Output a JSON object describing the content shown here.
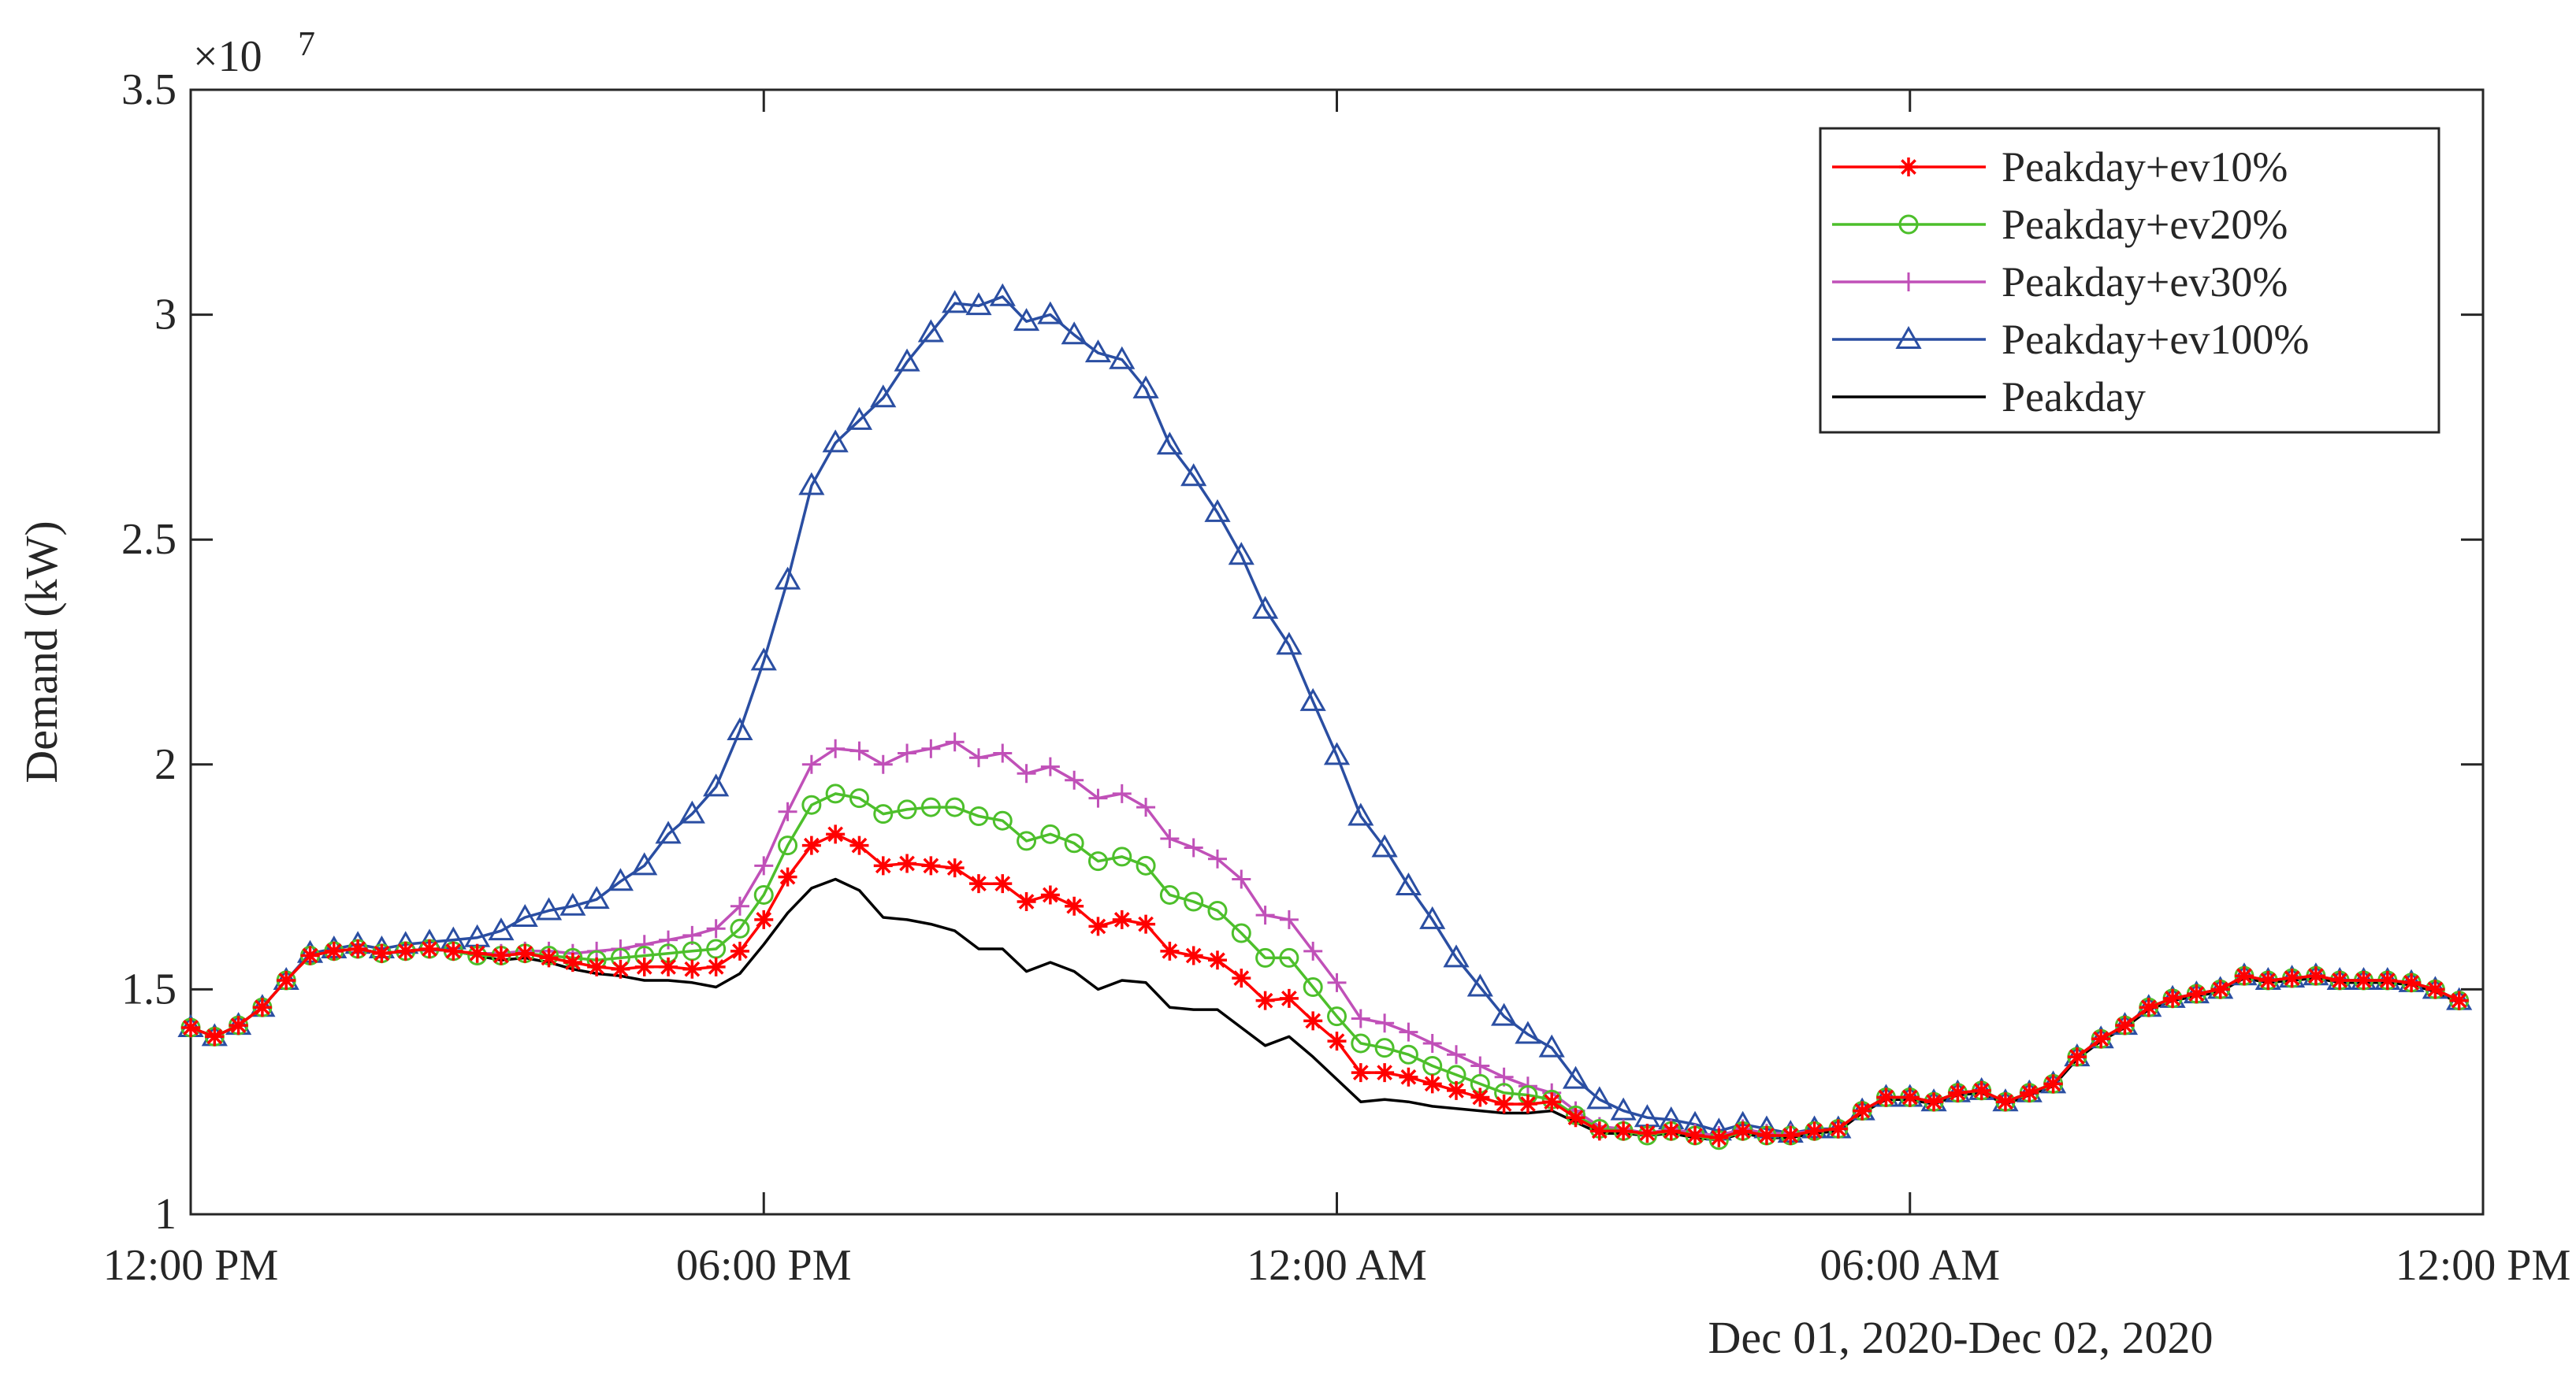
{
  "chart_data": {
    "type": "line",
    "title": "",
    "xlabel": "Dec 01, 2020-Dec 02, 2020",
    "ylabel": "Demand (kW)",
    "y_exponent_label": "×10",
    "y_exponent_power": "7",
    "ylim": [
      1.0,
      3.5
    ],
    "yticks": [
      1,
      1.5,
      2,
      2.5,
      3,
      3.5
    ],
    "ytick_labels": [
      "1",
      "1.5",
      "2",
      "2.5",
      "3",
      "3.5"
    ],
    "xlim_hours": [
      0,
      24
    ],
    "xticks_hours": [
      0,
      6,
      12,
      18,
      24
    ],
    "xtick_labels": [
      "12:00 PM",
      "06:00 PM",
      "12:00 AM",
      "06:00 AM",
      "12:00 PM"
    ],
    "legend_position": "top-right",
    "x_step_hours": 0.25,
    "x_note": "values are sampled every 15 minutes starting at 12:00 PM on Dec 01, 2020 (x in hours from start)",
    "series": [
      {
        "name": "Peakday+ev10%",
        "color": "#ff0000",
        "marker": "star",
        "values": [
          1.415,
          1.395,
          1.42,
          1.46,
          1.52,
          1.575,
          1.585,
          1.59,
          1.58,
          1.585,
          1.59,
          1.585,
          1.58,
          1.575,
          1.58,
          1.57,
          1.56,
          1.55,
          1.545,
          1.55,
          1.55,
          1.545,
          1.55,
          1.585,
          1.655,
          1.75,
          1.82,
          1.845,
          1.82,
          1.775,
          1.78,
          1.775,
          1.77,
          1.735,
          1.735,
          1.695,
          1.71,
          1.685,
          1.64,
          1.655,
          1.645,
          1.585,
          1.575,
          1.565,
          1.525,
          1.475,
          1.48,
          1.43,
          1.385,
          1.315,
          1.315,
          1.305,
          1.29,
          1.275,
          1.26,
          1.245,
          1.245,
          1.25,
          1.215,
          1.185,
          1.185,
          1.18,
          1.185,
          1.175,
          1.17,
          1.185,
          1.175,
          1.175,
          1.185,
          1.19,
          1.23,
          1.26,
          1.26,
          1.25,
          1.27,
          1.275,
          1.25,
          1.27,
          1.29,
          1.35,
          1.39,
          1.42,
          1.46,
          1.48,
          1.49,
          1.5,
          1.53,
          1.52,
          1.525,
          1.53,
          1.52,
          1.52,
          1.52,
          1.515,
          1.5,
          1.475
        ]
      },
      {
        "name": "Peakday+ev20%",
        "color": "#4dbf2b",
        "marker": "circle",
        "values": [
          1.415,
          1.395,
          1.42,
          1.46,
          1.52,
          1.575,
          1.585,
          1.59,
          1.58,
          1.585,
          1.59,
          1.585,
          1.575,
          1.575,
          1.58,
          1.575,
          1.57,
          1.565,
          1.57,
          1.575,
          1.58,
          1.585,
          1.59,
          1.635,
          1.71,
          1.82,
          1.91,
          1.935,
          1.925,
          1.89,
          1.9,
          1.905,
          1.905,
          1.885,
          1.875,
          1.83,
          1.845,
          1.825,
          1.785,
          1.795,
          1.775,
          1.71,
          1.695,
          1.675,
          1.625,
          1.57,
          1.57,
          1.505,
          1.44,
          1.38,
          1.37,
          1.355,
          1.33,
          1.31,
          1.29,
          1.27,
          1.265,
          1.255,
          1.22,
          1.19,
          1.185,
          1.175,
          1.185,
          1.175,
          1.165,
          1.185,
          1.175,
          1.175,
          1.185,
          1.19,
          1.23,
          1.26,
          1.26,
          1.25,
          1.27,
          1.275,
          1.25,
          1.27,
          1.29,
          1.35,
          1.39,
          1.42,
          1.46,
          1.48,
          1.49,
          1.5,
          1.53,
          1.52,
          1.525,
          1.53,
          1.52,
          1.52,
          1.52,
          1.515,
          1.5,
          1.475
        ]
      },
      {
        "name": "Peakday+ev30%",
        "color": "#c050b8",
        "marker": "plus",
        "values": [
          1.415,
          1.395,
          1.42,
          1.46,
          1.52,
          1.575,
          1.585,
          1.59,
          1.58,
          1.585,
          1.59,
          1.585,
          1.58,
          1.58,
          1.585,
          1.585,
          1.58,
          1.585,
          1.59,
          1.6,
          1.61,
          1.62,
          1.635,
          1.685,
          1.775,
          1.895,
          2.0,
          2.035,
          2.03,
          2.0,
          2.025,
          2.035,
          2.05,
          2.015,
          2.025,
          1.98,
          1.995,
          1.965,
          1.925,
          1.935,
          1.905,
          1.835,
          1.815,
          1.79,
          1.745,
          1.665,
          1.655,
          1.585,
          1.515,
          1.435,
          1.425,
          1.405,
          1.38,
          1.355,
          1.33,
          1.305,
          1.285,
          1.27,
          1.23,
          1.195,
          1.19,
          1.18,
          1.19,
          1.18,
          1.175,
          1.19,
          1.18,
          1.18,
          1.185,
          1.19,
          1.23,
          1.26,
          1.26,
          1.25,
          1.27,
          1.275,
          1.25,
          1.27,
          1.29,
          1.35,
          1.39,
          1.42,
          1.46,
          1.48,
          1.49,
          1.5,
          1.53,
          1.52,
          1.525,
          1.53,
          1.52,
          1.52,
          1.52,
          1.515,
          1.5,
          1.475
        ]
      },
      {
        "name": "Peakday+ev100%",
        "color": "#2a4ea2",
        "marker": "triangle",
        "values": [
          1.415,
          1.395,
          1.42,
          1.46,
          1.52,
          1.58,
          1.59,
          1.6,
          1.59,
          1.6,
          1.605,
          1.61,
          1.615,
          1.63,
          1.66,
          1.675,
          1.685,
          1.7,
          1.74,
          1.775,
          1.845,
          1.89,
          1.95,
          2.075,
          2.23,
          2.41,
          2.62,
          2.715,
          2.765,
          2.815,
          2.895,
          2.96,
          3.025,
          3.02,
          3.04,
          2.985,
          3.0,
          2.955,
          2.915,
          2.9,
          2.835,
          2.71,
          2.64,
          2.56,
          2.465,
          2.345,
          2.265,
          2.14,
          2.02,
          1.885,
          1.815,
          1.73,
          1.655,
          1.57,
          1.505,
          1.44,
          1.4,
          1.37,
          1.3,
          1.255,
          1.23,
          1.215,
          1.21,
          1.2,
          1.185,
          1.2,
          1.19,
          1.18,
          1.19,
          1.19,
          1.23,
          1.26,
          1.26,
          1.25,
          1.27,
          1.275,
          1.25,
          1.27,
          1.29,
          1.35,
          1.39,
          1.42,
          1.46,
          1.48,
          1.49,
          1.5,
          1.53,
          1.52,
          1.525,
          1.53,
          1.52,
          1.52,
          1.52,
          1.515,
          1.5,
          1.475
        ]
      },
      {
        "name": "Peakday",
        "color": "#000000",
        "marker": "none",
        "values": [
          1.415,
          1.395,
          1.42,
          1.46,
          1.52,
          1.575,
          1.585,
          1.59,
          1.58,
          1.585,
          1.59,
          1.585,
          1.575,
          1.565,
          1.57,
          1.56,
          1.545,
          1.535,
          1.53,
          1.52,
          1.52,
          1.515,
          1.505,
          1.535,
          1.6,
          1.67,
          1.725,
          1.745,
          1.72,
          1.66,
          1.655,
          1.645,
          1.63,
          1.59,
          1.59,
          1.54,
          1.56,
          1.54,
          1.5,
          1.52,
          1.515,
          1.46,
          1.455,
          1.455,
          1.415,
          1.375,
          1.395,
          1.35,
          1.3,
          1.25,
          1.255,
          1.25,
          1.24,
          1.235,
          1.23,
          1.225,
          1.225,
          1.23,
          1.205,
          1.18,
          1.18,
          1.175,
          1.18,
          1.17,
          1.165,
          1.18,
          1.17,
          1.17,
          1.18,
          1.185,
          1.225,
          1.255,
          1.255,
          1.245,
          1.265,
          1.27,
          1.245,
          1.265,
          1.285,
          1.345,
          1.385,
          1.415,
          1.455,
          1.475,
          1.485,
          1.495,
          1.525,
          1.515,
          1.52,
          1.525,
          1.515,
          1.515,
          1.515,
          1.51,
          1.495,
          1.47
        ]
      }
    ]
  }
}
